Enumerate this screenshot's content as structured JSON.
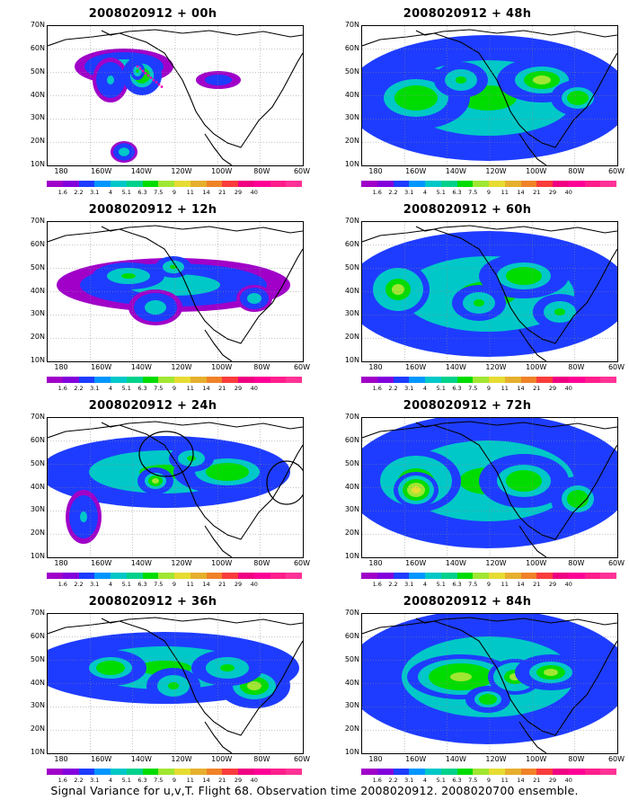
{
  "panels": [
    {
      "title": "2008020912 + 00h",
      "blobs": [
        [
          85,
          45,
          55,
          20,
          0.4
        ],
        [
          70,
          60,
          20,
          25,
          0.25
        ],
        [
          105,
          55,
          22,
          22,
          0.55
        ],
        [
          100,
          50,
          8,
          10,
          0.45
        ],
        [
          190,
          60,
          25,
          10,
          0.2
        ],
        [
          85,
          140,
          15,
          12,
          0.4
        ]
      ]
    },
    {
      "title": "2008020912 + 48h",
      "blobs": [
        [
          140,
          80,
          160,
          70,
          0.45
        ],
        [
          60,
          80,
          60,
          35,
          0.55
        ],
        [
          200,
          60,
          50,
          25,
          0.6
        ],
        [
          110,
          60,
          30,
          20,
          0.5
        ],
        [
          240,
          80,
          30,
          20,
          0.55
        ]
      ]
    },
    {
      "title": "2008020912 + 12h",
      "blobs": [
        [
          140,
          70,
          130,
          30,
          0.4
        ],
        [
          90,
          60,
          40,
          15,
          0.45
        ],
        [
          140,
          50,
          20,
          12,
          0.5
        ],
        [
          120,
          95,
          30,
          20,
          0.35
        ],
        [
          230,
          85,
          20,
          15,
          0.4
        ]
      ]
    },
    {
      "title": "2008020912 + 60h",
      "blobs": [
        [
          140,
          80,
          160,
          70,
          0.45
        ],
        [
          40,
          75,
          35,
          30,
          0.65
        ],
        [
          180,
          60,
          50,
          25,
          0.55
        ],
        [
          130,
          90,
          30,
          20,
          0.5
        ],
        [
          220,
          100,
          30,
          20,
          0.5
        ]
      ]
    },
    {
      "title": "2008020912 + 24h",
      "blobs": [
        [
          130,
          60,
          140,
          40,
          0.45
        ],
        [
          200,
          60,
          60,
          25,
          0.55
        ],
        [
          120,
          70,
          20,
          15,
          0.6
        ],
        [
          160,
          45,
          25,
          15,
          0.5
        ],
        [
          40,
          110,
          20,
          30,
          0.3
        ]
      ]
    },
    {
      "title": "2008020912 + 72h",
      "blobs": [
        [
          140,
          70,
          160,
          75,
          0.5
        ],
        [
          60,
          70,
          50,
          35,
          0.65
        ],
        [
          60,
          80,
          25,
          20,
          0.75
        ],
        [
          180,
          70,
          50,
          30,
          0.55
        ],
        [
          240,
          90,
          30,
          25,
          0.55
        ]
      ]
    },
    {
      "title": "2008020912 + 36h",
      "blobs": [
        [
          130,
          60,
          150,
          40,
          0.45
        ],
        [
          70,
          60,
          40,
          20,
          0.55
        ],
        [
          140,
          80,
          30,
          20,
          0.5
        ],
        [
          230,
          80,
          40,
          25,
          0.6
        ],
        [
          200,
          60,
          40,
          20,
          0.5
        ]
      ]
    },
    {
      "title": "2008020912 + 84h",
      "blobs": [
        [
          140,
          70,
          160,
          75,
          0.5
        ],
        [
          110,
          70,
          60,
          25,
          0.7
        ],
        [
          170,
          70,
          30,
          20,
          0.65
        ],
        [
          210,
          65,
          40,
          20,
          0.6
        ],
        [
          140,
          95,
          25,
          15,
          0.55
        ]
      ]
    }
  ],
  "lat_labels": [
    "70N",
    "60N",
    "50N",
    "40N",
    "30N",
    "20N",
    "10N"
  ],
  "lon_labels": [
    "180",
    "160W",
    "140W",
    "120W",
    "100W",
    "80W",
    "60W"
  ],
  "colorbar": {
    "labels": [
      "1.6",
      "2.2",
      "3.1",
      "4",
      "5.1",
      "6.3",
      "7.5",
      "9",
      "11",
      "14",
      "21",
      "29",
      "40"
    ],
    "colors": [
      "#a000c8",
      "#8200dc",
      "#1e3cff",
      "#0096ff",
      "#00c8c8",
      "#00d28c",
      "#00dc00",
      "#a0e632",
      "#e6dc32",
      "#e6af2d",
      "#f08228",
      "#fa3c3c",
      "#f00082",
      "#ff0096",
      "#ff1e8c",
      "#ff3296"
    ]
  },
  "caption": "Signal Variance for u,v,T. Flight 68. Observation time 2008020912. 2008020700 ensemble."
}
